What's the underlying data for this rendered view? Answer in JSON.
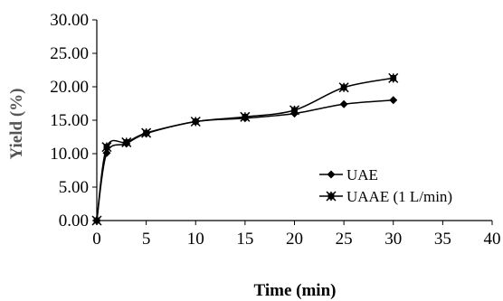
{
  "chart_data": {
    "type": "line",
    "xlabel": "Time (min)",
    "ylabel": "Yield (%)",
    "xlim": [
      0,
      40
    ],
    "ylim": [
      0,
      30
    ],
    "x_ticks": [
      "0",
      "5",
      "10",
      "15",
      "20",
      "25",
      "30",
      "35",
      "40"
    ],
    "y_ticks": [
      "0.00",
      "5.00",
      "10.00",
      "15.00",
      "20.00",
      "25.00",
      "30.00"
    ],
    "grid": false,
    "legend_position": "bottom-right",
    "series": [
      {
        "name": "UAE",
        "marker": "diamond",
        "color": "#000000",
        "x": [
          0,
          1,
          3,
          5,
          10,
          15,
          20,
          25,
          30
        ],
        "y": [
          0.0,
          10.1,
          11.5,
          13.0,
          14.8,
          15.3,
          16.0,
          17.4,
          18.0
        ]
      },
      {
        "name": "UAAE (1 L/min)",
        "marker": "star",
        "color": "#000000",
        "x": [
          0,
          1,
          3,
          5,
          10,
          15,
          20,
          25,
          30
        ],
        "y": [
          0.0,
          11.0,
          11.7,
          13.1,
          14.8,
          15.5,
          16.5,
          19.9,
          21.3
        ]
      }
    ]
  }
}
